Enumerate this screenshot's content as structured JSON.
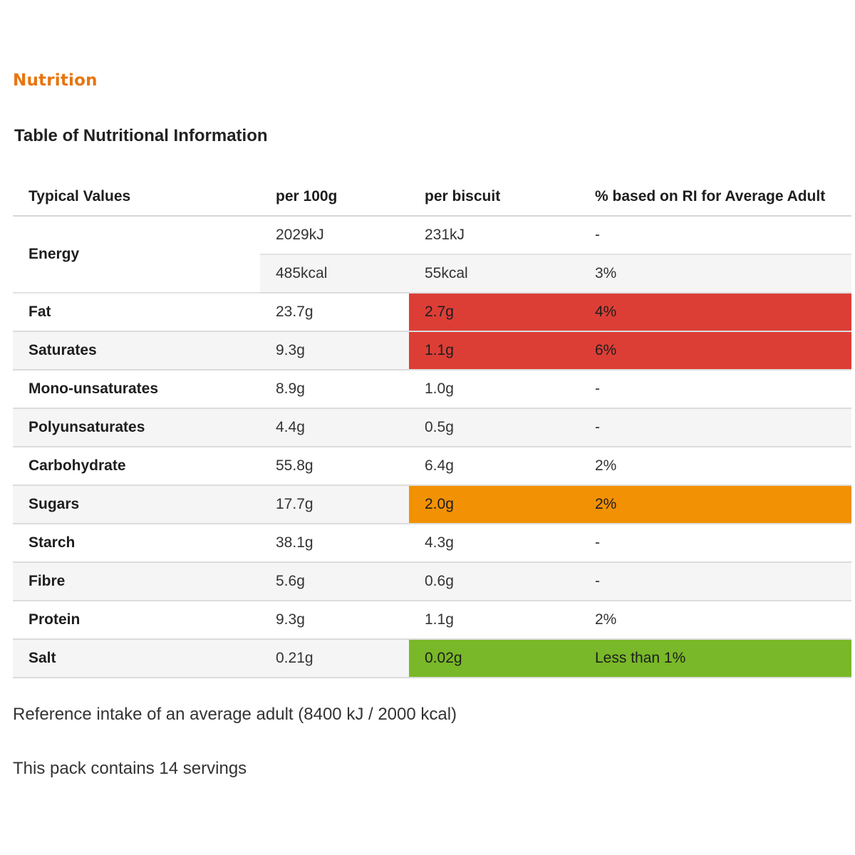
{
  "heading": "Nutrition",
  "table_title": "Table of Nutritional Information",
  "columns": [
    "Typical Values",
    "per 100g",
    "per biscuit",
    "% based on RI for Average Adult"
  ],
  "energy": {
    "label": "Energy",
    "rows": [
      {
        "per100g": "2029kJ",
        "perBiscuit": "231kJ",
        "ri": "-"
      },
      {
        "per100g": "485kcal",
        "perBiscuit": "55kcal",
        "ri": "3%"
      }
    ]
  },
  "rows": [
    {
      "name": "Fat",
      "per100g": "23.7g",
      "perBiscuit": "2.7g",
      "ri": "4%",
      "traffic_light": "red"
    },
    {
      "name": "Saturates",
      "per100g": "9.3g",
      "perBiscuit": "1.1g",
      "ri": "6%",
      "traffic_light": "red"
    },
    {
      "name": "Mono-unsaturates",
      "per100g": "8.9g",
      "perBiscuit": "1.0g",
      "ri": "-",
      "traffic_light": "none"
    },
    {
      "name": "Polyunsaturates",
      "per100g": "4.4g",
      "perBiscuit": "0.5g",
      "ri": "-",
      "traffic_light": "none"
    },
    {
      "name": "Carbohydrate",
      "per100g": "55.8g",
      "perBiscuit": "6.4g",
      "ri": "2%",
      "traffic_light": "none"
    },
    {
      "name": "Sugars",
      "per100g": "17.7g",
      "perBiscuit": "2.0g",
      "ri": "2%",
      "traffic_light": "amber"
    },
    {
      "name": "Starch",
      "per100g": "38.1g",
      "perBiscuit": "4.3g",
      "ri": "-",
      "traffic_light": "none"
    },
    {
      "name": "Fibre",
      "per100g": "5.6g",
      "perBiscuit": "0.6g",
      "ri": "-",
      "traffic_light": "none"
    },
    {
      "name": "Protein",
      "per100g": "9.3g",
      "perBiscuit": "1.1g",
      "ri": "2%",
      "traffic_light": "none"
    },
    {
      "name": "Salt",
      "per100g": "0.21g",
      "perBiscuit": "0.02g",
      "ri": "Less than 1%",
      "traffic_light": "green"
    }
  ],
  "colors": {
    "heading": "#e8750e",
    "red": "#dc3e36",
    "amber": "#f29104",
    "green": "#79b828",
    "stripe": "#f5f5f5"
  },
  "footnotes": {
    "reference_intake": "Reference intake of an average adult (8400 kJ / 2000 kcal)",
    "servings": "This pack contains 14 servings"
  }
}
